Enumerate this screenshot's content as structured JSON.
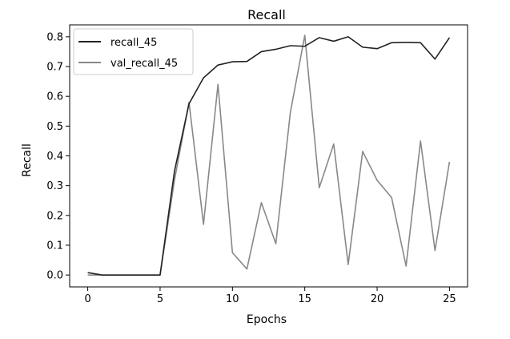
{
  "chart_data": {
    "type": "line",
    "title": "Recall",
    "xlabel": "Epochs",
    "ylabel": "Recall",
    "xlim": [
      -1.25,
      26.25
    ],
    "ylim": [
      -0.04,
      0.84
    ],
    "xticks": [
      0,
      5,
      10,
      15,
      20,
      25
    ],
    "xtick_labels": [
      "0",
      "5",
      "10",
      "15",
      "20",
      "25"
    ],
    "yticks": [
      0.0,
      0.1,
      0.2,
      0.3,
      0.4,
      0.5,
      0.6,
      0.7,
      0.8
    ],
    "ytick_labels": [
      "0.0",
      "0.1",
      "0.2",
      "0.3",
      "0.4",
      "0.5",
      "0.6",
      "0.7",
      "0.8"
    ],
    "grid": false,
    "legend_position": "top-left",
    "x": [
      0,
      1,
      2,
      3,
      4,
      5,
      6,
      7,
      8,
      9,
      10,
      11,
      12,
      13,
      14,
      15,
      16,
      17,
      18,
      19,
      20,
      21,
      22,
      23,
      24,
      25
    ],
    "series": [
      {
        "name": "recall_45",
        "color": "#222222",
        "values": [
          0.008,
          0.0,
          0.0,
          0.0,
          0.0,
          0.0,
          0.35,
          0.575,
          0.662,
          0.705,
          0.716,
          0.717,
          0.75,
          0.758,
          0.77,
          0.768,
          0.797,
          0.785,
          0.8,
          0.765,
          0.76,
          0.78,
          0.781,
          0.78,
          0.725,
          0.797
        ]
      },
      {
        "name": "val_recall_45",
        "color": "#888888",
        "values": [
          0.0,
          0.0,
          0.0,
          0.0,
          0.0,
          0.0,
          0.32,
          0.58,
          0.17,
          0.64,
          0.075,
          0.02,
          0.243,
          0.105,
          0.545,
          0.805,
          0.293,
          0.44,
          0.035,
          0.415,
          0.318,
          0.26,
          0.03,
          0.45,
          0.082,
          0.38
        ]
      }
    ]
  }
}
